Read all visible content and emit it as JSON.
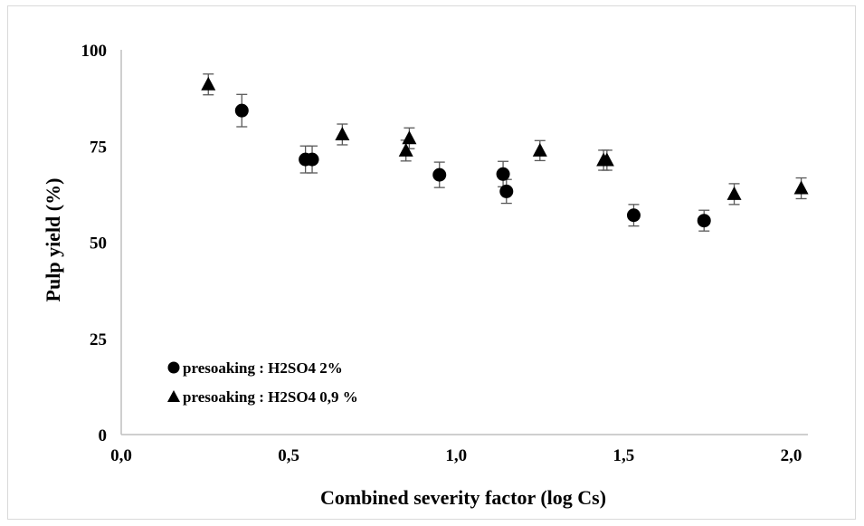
{
  "chart_data": {
    "type": "scatter",
    "xlabel": "Combined severity factor (log Cs)",
    "ylabel": "Pulp yield (%)",
    "xlim": [
      0,
      2.05
    ],
    "ylim": [
      0,
      100
    ],
    "x_ticks": [
      "0,0",
      "0,5",
      "1,0",
      "1,5",
      "2,0"
    ],
    "x_tick_values": [
      0,
      0.5,
      1.0,
      1.5,
      2.0
    ],
    "y_ticks": [
      "0",
      "25",
      "50",
      "75",
      "100"
    ],
    "y_tick_values": [
      0,
      25,
      50,
      75,
      100
    ],
    "grid": false,
    "legend_position": "bottom-left",
    "error_bars": true,
    "series": [
      {
        "name": "presoaking : H2SO4 2%",
        "marker": "circle",
        "color": "#000000",
        "points": [
          {
            "x": 0.36,
            "y": 84.2,
            "err": 4.2
          },
          {
            "x": 0.55,
            "y": 71.5,
            "err": 3.5
          },
          {
            "x": 0.57,
            "y": 71.5,
            "err": 3.5
          },
          {
            "x": 0.95,
            "y": 67.5,
            "err": 3.3
          },
          {
            "x": 1.14,
            "y": 67.7,
            "err": 3.3
          },
          {
            "x": 1.15,
            "y": 63.2,
            "err": 3.1
          },
          {
            "x": 1.53,
            "y": 57.0,
            "err": 2.8
          },
          {
            "x": 1.74,
            "y": 55.6,
            "err": 2.7
          }
        ]
      },
      {
        "name": "presoaking : H2SO4 0,9 %",
        "marker": "triangle",
        "color": "#000000",
        "points": [
          {
            "x": 0.26,
            "y": 91.0,
            "err": 2.7
          },
          {
            "x": 0.66,
            "y": 78.0,
            "err": 2.7
          },
          {
            "x": 0.85,
            "y": 73.8,
            "err": 2.7
          },
          {
            "x": 0.86,
            "y": 77.0,
            "err": 2.7
          },
          {
            "x": 1.25,
            "y": 73.8,
            "err": 2.6
          },
          {
            "x": 1.44,
            "y": 71.3,
            "err": 2.6
          },
          {
            "x": 1.45,
            "y": 71.3,
            "err": 2.6
          },
          {
            "x": 1.83,
            "y": 62.5,
            "err": 2.7
          },
          {
            "x": 2.03,
            "y": 64.0,
            "err": 2.7
          }
        ]
      }
    ]
  }
}
